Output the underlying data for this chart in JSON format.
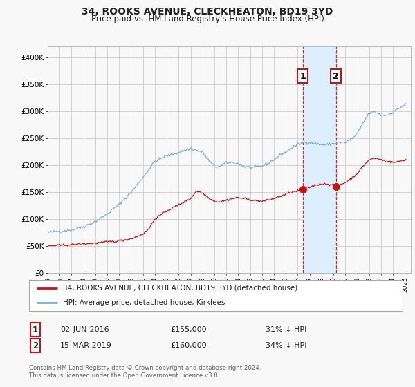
{
  "title": "34, ROOKS AVENUE, CLECKHEATON, BD19 3YD",
  "subtitle": "Price paid vs. HM Land Registry's House Price Index (HPI)",
  "title_fontsize": 10,
  "subtitle_fontsize": 8.5,
  "ylim": [
    0,
    420000
  ],
  "yticks": [
    0,
    50000,
    100000,
    150000,
    200000,
    250000,
    300000,
    350000,
    400000
  ],
  "ytick_labels": [
    "£0",
    "£50K",
    "£100K",
    "£150K",
    "£200K",
    "£250K",
    "£300K",
    "£350K",
    "£400K"
  ],
  "xlim_start": 1995.0,
  "xlim_end": 2025.5,
  "sale1_x": 2016.42,
  "sale1_y": 155000,
  "sale2_x": 2019.21,
  "sale2_y": 160000,
  "sale1_label": "02-JUN-2016",
  "sale2_label": "15-MAR-2019",
  "sale1_price": "£155,000",
  "sale2_price": "£160,000",
  "sale1_hpi": "31% ↓ HPI",
  "sale2_hpi": "34% ↓ HPI",
  "legend_label1": "34, ROOKS AVENUE, CLECKHEATON, BD19 3YD (detached house)",
  "legend_label2": "HPI: Average price, detached house, Kirklees",
  "footer1": "Contains HM Land Registry data © Crown copyright and database right 2024.",
  "footer2": "This data is licensed under the Open Government Licence v3.0.",
  "line_color_red": "#cc1111",
  "line_color_blue": "#7aaed6",
  "shaded_region_color": "#ddeeff",
  "vline_color": "#cc1111",
  "background_color": "#f8f8f8",
  "grid_color": "#cccccc"
}
